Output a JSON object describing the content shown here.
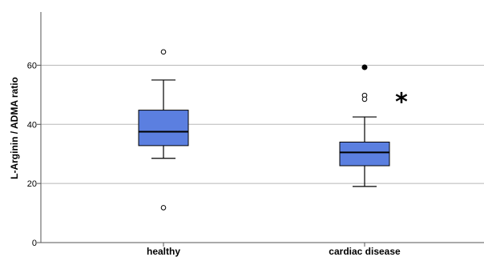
{
  "chart_data": {
    "type": "box",
    "title": "",
    "xlabel": "",
    "ylabel": "L-Arginin / ADMA ratio",
    "ylim": [
      0,
      78
    ],
    "yticks": [
      0,
      20,
      40,
      60
    ],
    "grid": true,
    "box_color": "#5b7fe0",
    "categories": [
      "healthy",
      "cardiac disease"
    ],
    "boxes": [
      {
        "category": "healthy",
        "whisker_low": 28.5,
        "q1": 32.8,
        "median": 37.5,
        "q3": 44.8,
        "whisker_high": 55.0,
        "outliers": [
          64.5,
          11.8
        ],
        "extremes": []
      },
      {
        "category": "cardiac disease",
        "whisker_low": 19.0,
        "q1": 26.0,
        "median": 30.5,
        "q3": 34.0,
        "whisker_high": 42.5,
        "outliers": [
          49.8,
          48.5
        ],
        "extremes": [
          59.3
        ]
      }
    ],
    "annotations": [
      {
        "text": "*",
        "category": "cardiac disease",
        "y": 50
      }
    ]
  }
}
